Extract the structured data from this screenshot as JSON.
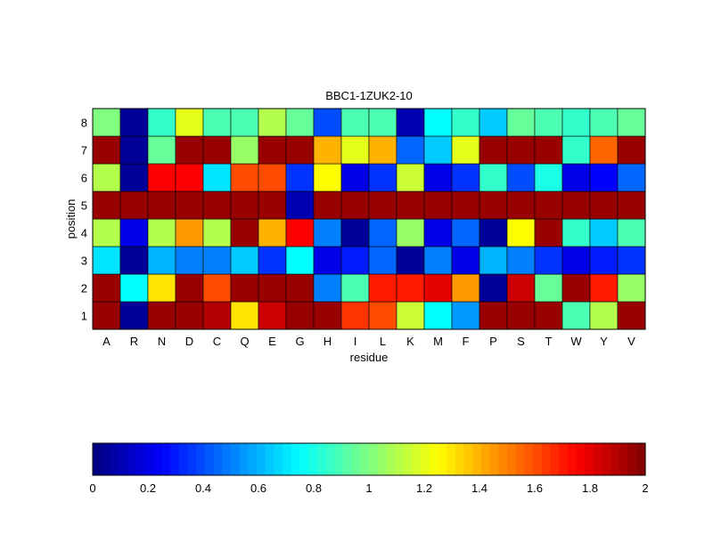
{
  "chart_data": {
    "type": "heatmap",
    "title": "BBC1-1ZUK2-10",
    "xlabel": "residue",
    "ylabel": "position",
    "x": [
      "A",
      "R",
      "N",
      "D",
      "C",
      "Q",
      "E",
      "G",
      "H",
      "I",
      "L",
      "K",
      "M",
      "F",
      "P",
      "S",
      "T",
      "W",
      "Y",
      "V"
    ],
    "y": [
      "1",
      "2",
      "3",
      "4",
      "5",
      "6",
      "7",
      "8"
    ],
    "values": [
      [
        1.95,
        0.05,
        1.95,
        1.95,
        1.9,
        1.3,
        1.85,
        1.95,
        1.95,
        1.65,
        1.6,
        1.15,
        0.75,
        0.55,
        1.95,
        1.95,
        1.95,
        0.9,
        1.1,
        1.95
      ],
      [
        1.95,
        0.75,
        1.3,
        1.95,
        1.6,
        1.95,
        1.95,
        1.95,
        0.5,
        0.9,
        1.7,
        1.7,
        1.8,
        1.45,
        0.05,
        1.85,
        0.95,
        1.95,
        1.7,
        1.05
      ],
      [
        0.7,
        0.05,
        0.6,
        0.5,
        0.5,
        0.65,
        0.35,
        0.75,
        0.2,
        0.3,
        0.45,
        0.05,
        0.5,
        0.2,
        0.6,
        0.5,
        0.35,
        0.2,
        0.3,
        0.35
      ],
      [
        1.1,
        0.2,
        1.1,
        1.45,
        1.1,
        1.95,
        1.4,
        1.75,
        0.5,
        0.05,
        0.45,
        1.05,
        0.2,
        0.45,
        0.05,
        1.25,
        1.95,
        0.85,
        0.65,
        0.9
      ],
      [
        1.95,
        1.95,
        1.95,
        1.95,
        1.95,
        1.95,
        1.95,
        0.1,
        1.95,
        1.95,
        1.95,
        1.95,
        1.95,
        1.95,
        1.95,
        1.95,
        1.95,
        1.95,
        1.95,
        1.95
      ],
      [
        1.1,
        0.05,
        1.75,
        1.75,
        0.7,
        1.6,
        1.6,
        0.35,
        1.25,
        0.2,
        0.35,
        1.15,
        0.2,
        0.35,
        0.85,
        0.4,
        0.8,
        0.2,
        0.25,
        0.45
      ],
      [
        1.95,
        0.05,
        0.95,
        1.95,
        1.95,
        1.05,
        1.95,
        1.95,
        1.4,
        1.2,
        1.4,
        0.45,
        0.65,
        1.2,
        1.95,
        1.95,
        1.95,
        0.85,
        1.55,
        1.95
      ],
      [
        1.0,
        0.05,
        0.85,
        1.2,
        0.9,
        0.9,
        1.1,
        0.95,
        0.4,
        0.9,
        0.9,
        0.1,
        0.75,
        0.85,
        0.65,
        0.95,
        0.9,
        0.85,
        0.9,
        0.95
      ]
    ],
    "colorbar": {
      "min": 0,
      "max": 2,
      "ticks": [
        "0",
        "0.2",
        "0.4",
        "0.6",
        "0.8",
        "1",
        "1.2",
        "1.4",
        "1.6",
        "1.8",
        "2"
      ],
      "colormap": "jet",
      "orientation": "horizontal"
    },
    "grid": false
  }
}
